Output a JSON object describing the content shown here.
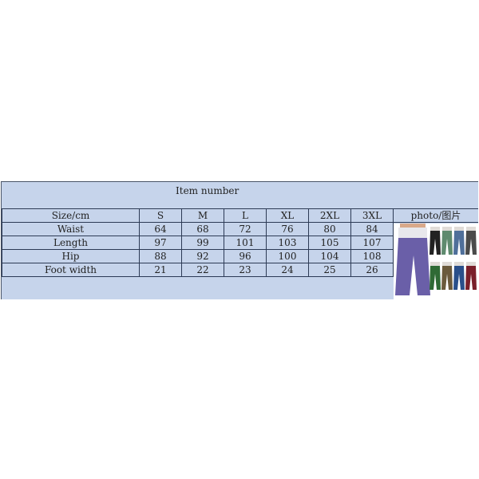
{
  "title": "Item number",
  "header": [
    "Size/cm",
    "S",
    "M",
    "L",
    "XL",
    "2XL",
    "3XL",
    "photo/图片"
  ],
  "rows": [
    {
      "label": "Waist",
      "values": [
        "64",
        "68",
        "72",
        "76",
        "80",
        "84"
      ]
    },
    {
      "label": "Length",
      "values": [
        "97",
        "99",
        "101",
        "103",
        "105",
        "107"
      ]
    },
    {
      "label": "Hip",
      "values": [
        "88",
        "92",
        "96",
        "100",
        "104",
        "108"
      ]
    },
    {
      "label": "Foot width",
      "values": [
        "21",
        "22",
        "23",
        "24",
        "25",
        "26"
      ]
    }
  ],
  "colors": {
    "panel": "#c6d4eb",
    "pants": [
      "#6a5fa8",
      "#222222",
      "#5e8a6e",
      "#4f6f9a",
      "#4a4a4a",
      "#2f6a35",
      "#6b5a3c",
      "#2a4f8a",
      "#7a1f2a"
    ]
  }
}
